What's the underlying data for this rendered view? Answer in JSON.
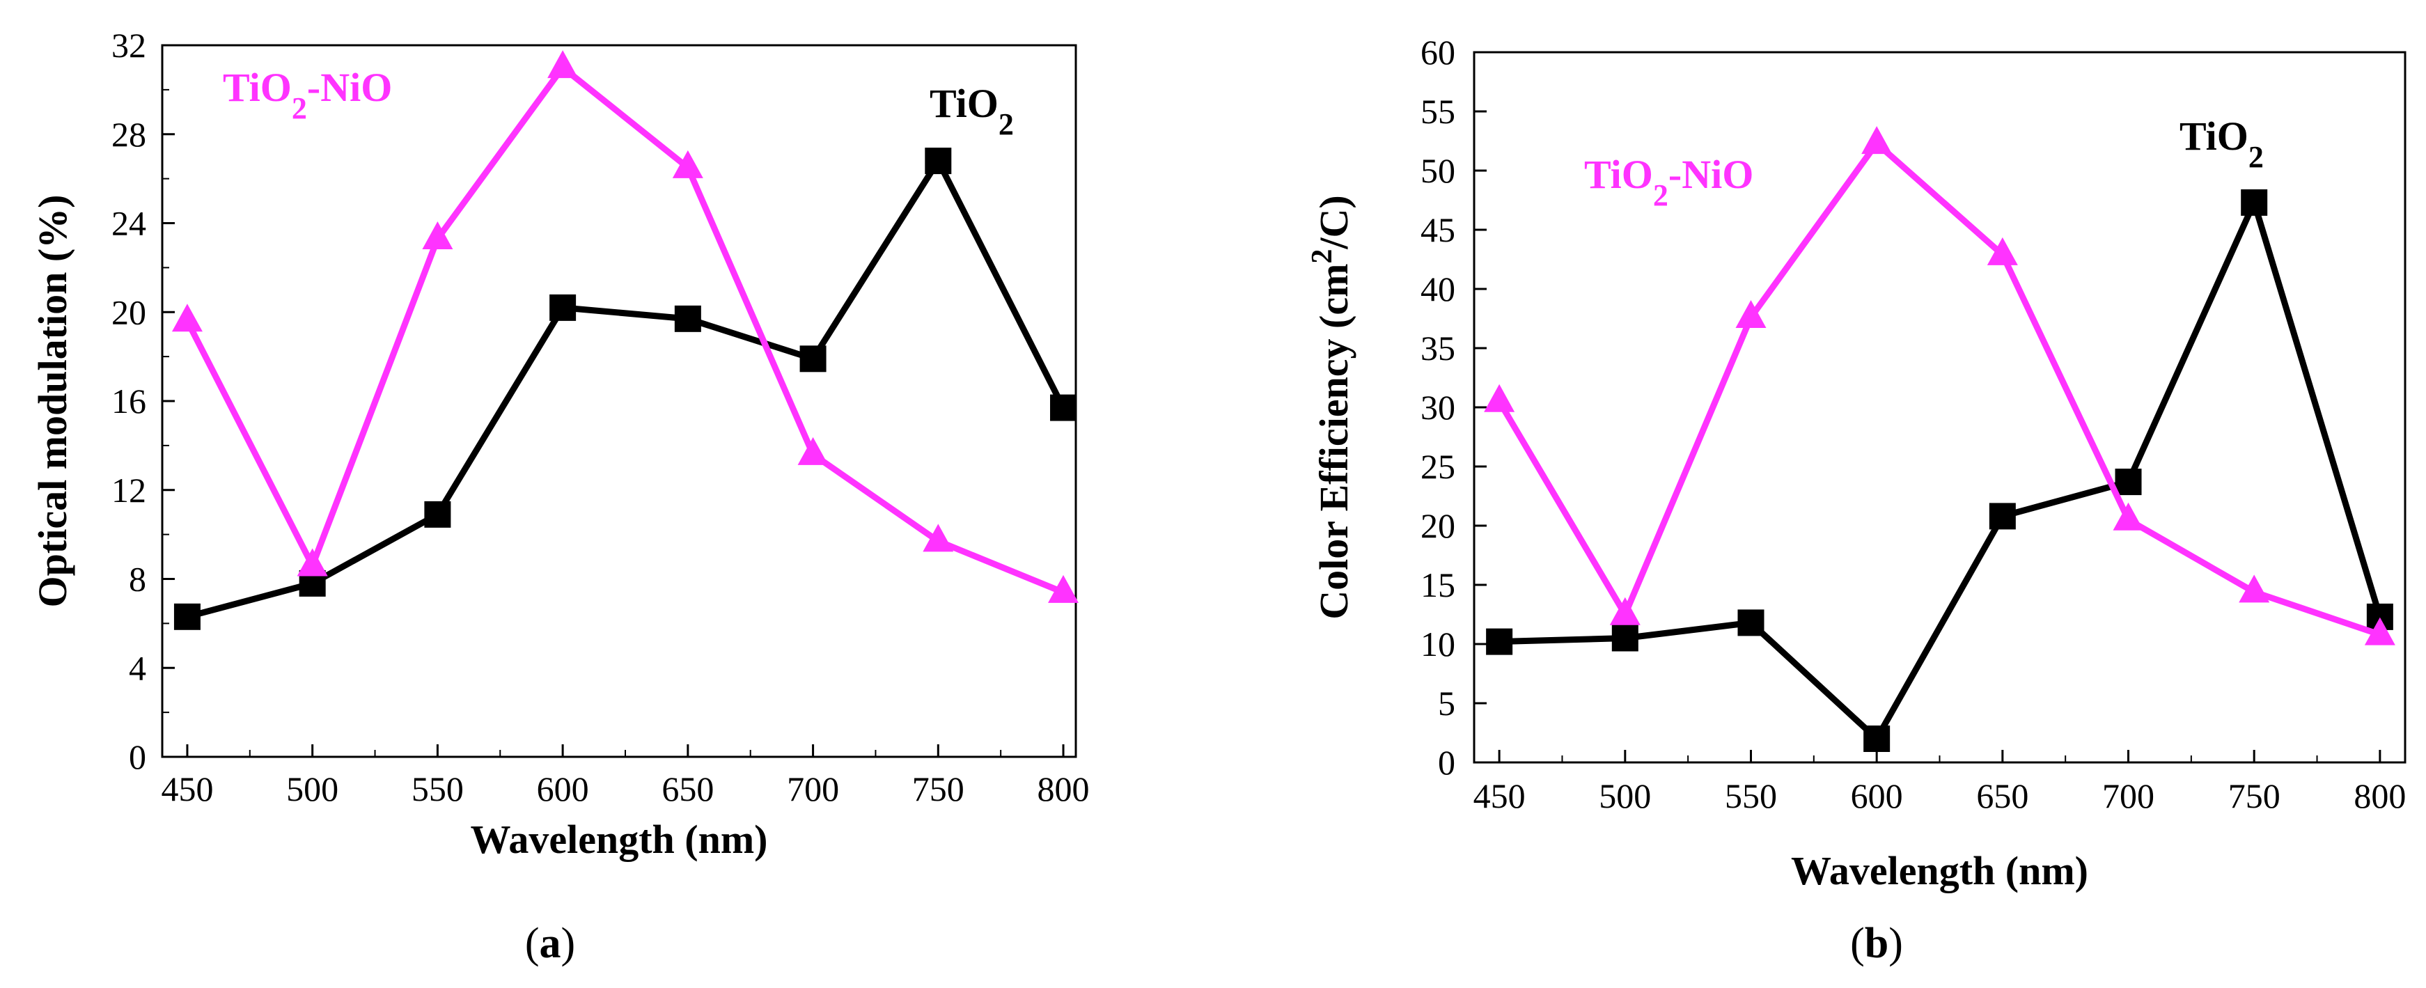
{
  "colors": {
    "tio2": "#000000",
    "tio2_nio": "#ff33ff"
  },
  "chart_data": [
    {
      "type": "line",
      "panel_label": "(a)",
      "panel_letter": "a",
      "xlabel": "Wavelength (nm)",
      "ylabel": "Optical modulation (%)",
      "xlim": [
        440,
        805
      ],
      "ylim": [
        0,
        32
      ],
      "xticks": [
        450,
        500,
        550,
        600,
        650,
        700,
        750,
        800
      ],
      "yticks": [
        0,
        4,
        8,
        12,
        16,
        20,
        24,
        28,
        32
      ],
      "x": [
        450,
        500,
        550,
        600,
        650,
        700,
        750,
        800
      ],
      "grid": false,
      "series": [
        {
          "name": "TiO2",
          "name_main": "TiO",
          "name_sub": "2",
          "name_tail": "",
          "marker": "square",
          "color": "#000000",
          "values": [
            6.3,
            7.8,
            10.9,
            20.2,
            19.7,
            17.9,
            26.8,
            15.7
          ]
        },
        {
          "name": "TiO2-NiO",
          "name_main": "TiO",
          "name_sub": "2",
          "name_tail": "-NiO",
          "marker": "triangle",
          "color": "#ff33ff",
          "values": [
            19.6,
            8.6,
            23.3,
            31.0,
            26.5,
            13.6,
            9.7,
            7.4
          ]
        }
      ]
    },
    {
      "type": "line",
      "panel_label": "(b)",
      "panel_letter": "b",
      "xlabel": "Wavelength (nm)",
      "ylabel": "Color Efficiency (cm2/C)",
      "ylabel_main": "Color Efficiency (cm",
      "ylabel_sup": "2",
      "ylabel_tail": "/C)",
      "xlim": [
        440,
        810
      ],
      "ylim": [
        0,
        60
      ],
      "xticks": [
        450,
        500,
        550,
        600,
        650,
        700,
        750,
        800
      ],
      "yticks": [
        0,
        5,
        10,
        15,
        20,
        25,
        30,
        35,
        40,
        45,
        50,
        55,
        60
      ],
      "x": [
        450,
        500,
        550,
        600,
        650,
        700,
        750,
        800
      ],
      "grid": false,
      "series": [
        {
          "name": "TiO2",
          "name_main": "TiO",
          "name_sub": "2",
          "name_tail": "",
          "marker": "square",
          "color": "#000000",
          "values": [
            10.2,
            10.5,
            11.8,
            2.0,
            20.8,
            23.7,
            47.3,
            12.3
          ]
        },
        {
          "name": "TiO2-NiO",
          "name_main": "TiO",
          "name_sub": "2",
          "name_tail": "-NiO",
          "marker": "triangle",
          "color": "#ff33ff",
          "values": [
            30.5,
            12.5,
            37.6,
            52.3,
            42.9,
            20.5,
            14.4,
            10.8
          ]
        }
      ]
    }
  ]
}
